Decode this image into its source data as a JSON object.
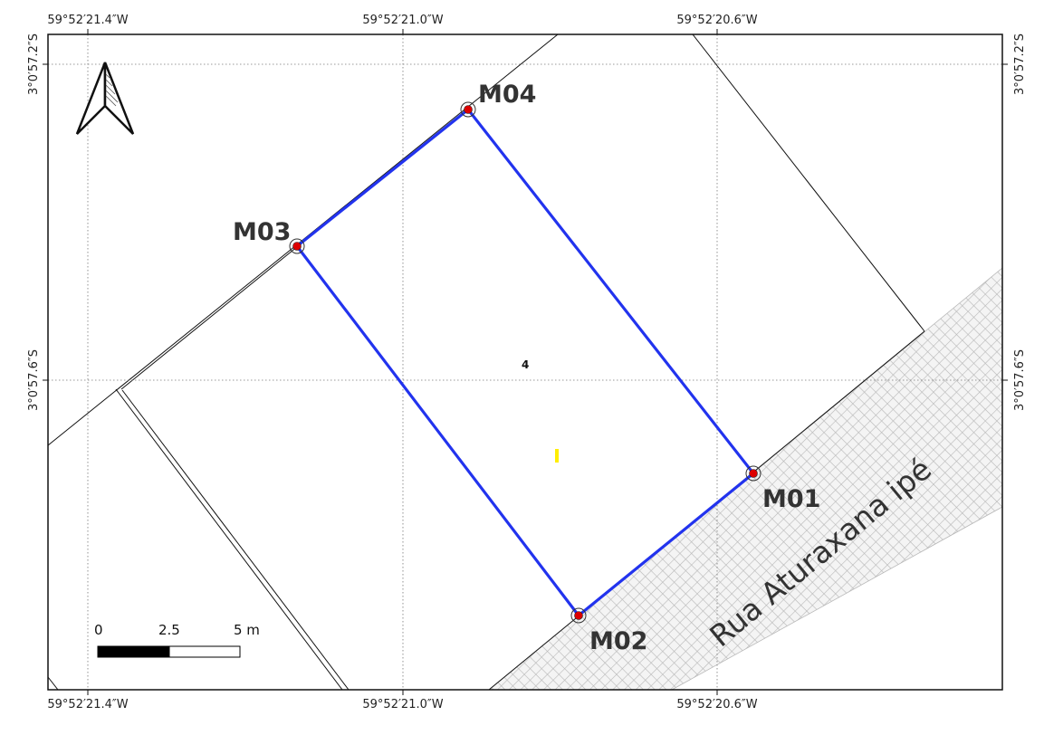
{
  "map": {
    "top_coords": [
      "59°52′21.4″W",
      "59°52′21.0″W",
      "59°52′20.6″W"
    ],
    "bottom_coords": [
      "59°52′21.4″W",
      "59°52′21.0″W",
      "59°52′20.6″W"
    ],
    "left_coords": [
      "3°0′57.2″S",
      "3°0′57.6″S"
    ],
    "right_coords": [
      "3°0′57.2″S",
      "3°0′57.6″S"
    ],
    "markers": [
      {
        "id": "M01",
        "label": "M01"
      },
      {
        "id": "M02",
        "label": "M02"
      },
      {
        "id": "M03",
        "label": "M03"
      },
      {
        "id": "M04",
        "label": "M04"
      }
    ],
    "lot_label": "4",
    "street_name": "Rua Aturaxana ipé",
    "scale": {
      "labels": [
        "0",
        "2.5",
        "5 m"
      ]
    },
    "colors": {
      "boundary": "#2233ee",
      "marker_fill": "#dd0000",
      "street_hatch": "#b8b8b8",
      "highlight": "#ffee00"
    },
    "icons": [
      "north-arrow-icon"
    ]
  }
}
